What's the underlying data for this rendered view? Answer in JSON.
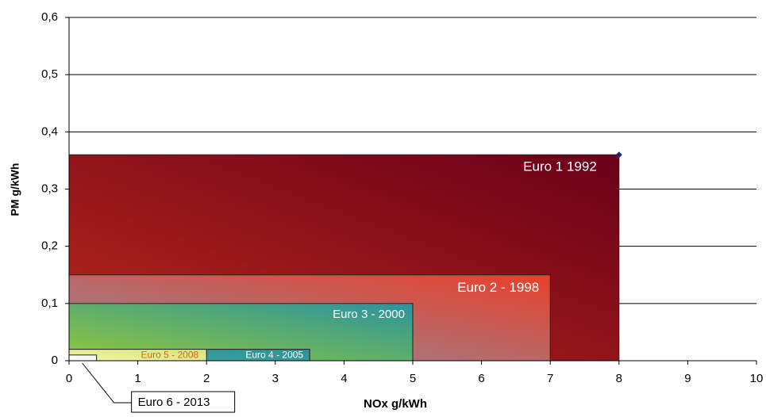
{
  "chart_data": {
    "type": "rectangle",
    "x_label": "NOx g/kWh",
    "y_label": "PM g/kWh",
    "xlim": [
      0,
      10
    ],
    "ylim": [
      0,
      0.6
    ],
    "xticks": [
      0,
      1,
      2,
      3,
      4,
      5,
      6,
      7,
      8,
      9,
      10
    ],
    "yticks": [
      0,
      {
        "value": 0.1,
        "label": "0,1"
      },
      {
        "value": 0.2,
        "label": "0,2"
      },
      {
        "value": 0.3,
        "label": "0,3"
      },
      {
        "value": 0.4,
        "label": "0,4"
      },
      {
        "value": 0.5,
        "label": "0,5"
      },
      {
        "value": 0.6,
        "label": "0,6"
      }
    ],
    "grid": true,
    "series": [
      {
        "name": "Euro 1 1992",
        "color": [
          "#b8291a",
          "#6a0019"
        ],
        "label_color": "#ffffff",
        "x": [
          8
        ],
        "values": [
          0.36
        ]
      },
      {
        "name": "Euro 2 - 1998",
        "color": [
          "#8d8e9e",
          "#e8402c"
        ],
        "label_color": "#ffffff",
        "x": [
          7
        ],
        "values": [
          0.15
        ]
      },
      {
        "name": "Euro 3  - 2000",
        "color": [
          "#92c83a",
          "#2a949e"
        ],
        "label_color": "#ffffff",
        "x": [
          5
        ],
        "values": [
          0.1
        ]
      },
      {
        "name": "Euro 4 - 2005",
        "color": [
          "#3ea8a0",
          "#2f8f94"
        ],
        "label_color": "#ffffff",
        "x": [
          3.5
        ],
        "values": [
          0.02
        ]
      },
      {
        "name": "Euro 5 - 2008",
        "color": [
          "#f4f4a8",
          "#cfe67c"
        ],
        "label_color": "#e0601e",
        "x": [
          2
        ],
        "values": [
          0.02
        ]
      },
      {
        "name": "Euro 6 - 2013",
        "color": [
          "#ffffff",
          "#f4f4f4"
        ],
        "label_color": "#000000",
        "x": [
          0.4
        ],
        "values": [
          0.01
        ]
      }
    ]
  }
}
